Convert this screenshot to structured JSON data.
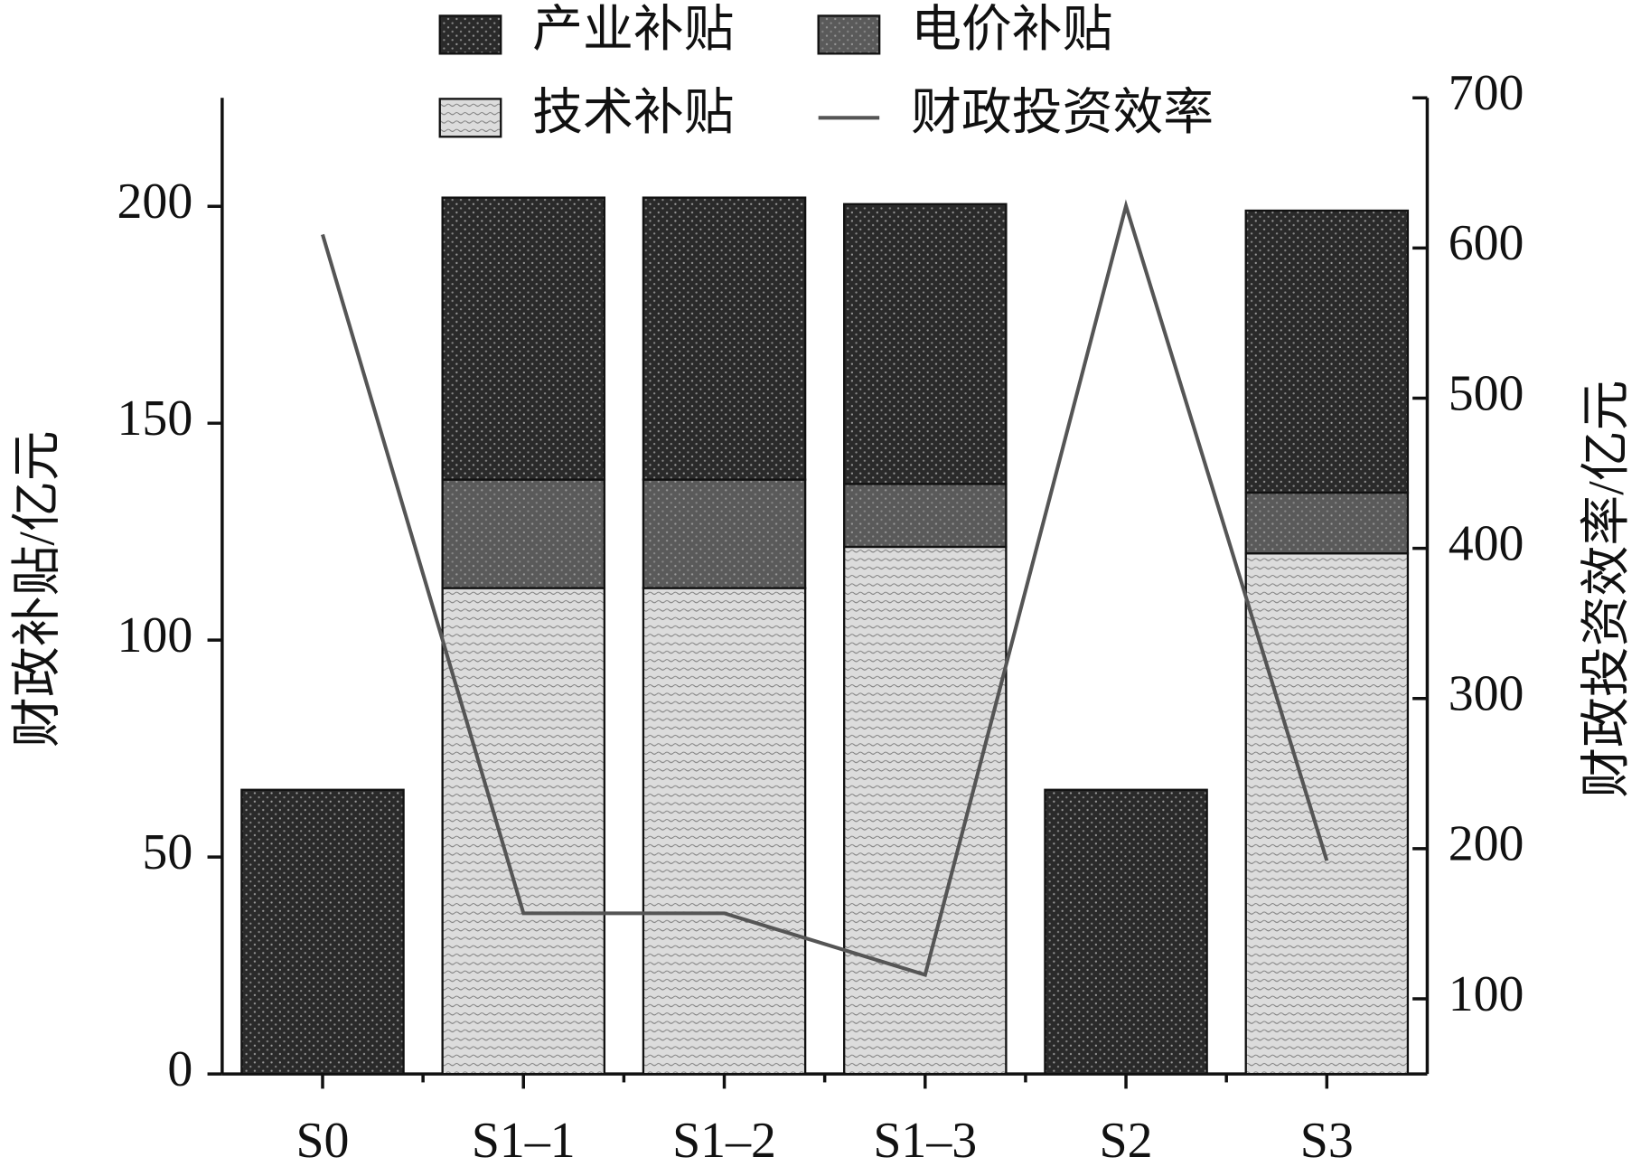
{
  "chart_data": {
    "type": "bar",
    "categories": [
      "S0",
      "S1–1",
      "S1–2",
      "S1–3",
      "S2",
      "S3"
    ],
    "y_label": "财政补贴/亿元",
    "y2_label": "财政投资效率/亿元",
    "ylim": [
      0,
      225
    ],
    "yticks": [
      0,
      50,
      100,
      150,
      200
    ],
    "y2lim": [
      50,
      700
    ],
    "y2ticks": [
      100,
      200,
      300,
      400,
      500,
      600,
      700
    ],
    "stacked": true,
    "series": [
      {
        "name": "技术补贴",
        "color": "#dcdcdc",
        "values": [
          0,
          112,
          112,
          121.5,
          0,
          120
        ]
      },
      {
        "name": "电价补贴",
        "color": "#5a5a5a",
        "values": [
          0,
          25,
          25,
          14.5,
          0,
          14
        ]
      },
      {
        "name": "产业补贴",
        "color": "#2a2a2a",
        "values": [
          65.5,
          65,
          65,
          64.5,
          65.5,
          65
        ]
      },
      {
        "name": "财政投资效率",
        "color": "#555555",
        "type": "line",
        "axis": "y2",
        "values": [
          609,
          157,
          157,
          116,
          628,
          192
        ]
      }
    ]
  }
}
